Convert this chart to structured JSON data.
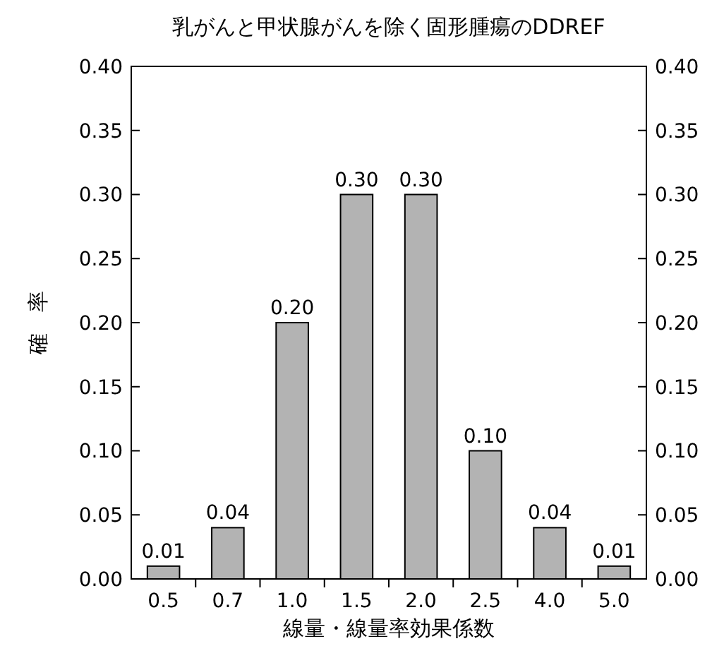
{
  "chart_data": {
    "type": "bar",
    "title": "乳がんと甲状腺がんを除く固形腫瘍のDDREF",
    "xlabel": "線量・線量率効果係数",
    "ylabel": "確　率",
    "categories": [
      "0.5",
      "0.7",
      "1.0",
      "1.5",
      "2.0",
      "2.5",
      "4.0",
      "5.0"
    ],
    "values": [
      0.01,
      0.04,
      0.2,
      0.3,
      0.3,
      0.1,
      0.04,
      0.01
    ],
    "value_labels": [
      "0.01",
      "0.04",
      "0.20",
      "0.30",
      "0.30",
      "0.10",
      "0.04",
      "0.01"
    ],
    "color": "#b3b3b3",
    "ylim": [
      0,
      0.4
    ],
    "yticks": [
      {
        "value": 0,
        "label": "0.00"
      },
      {
        "value": 0.05,
        "label": "0.05"
      },
      {
        "value": 0.1,
        "label": "0.10"
      },
      {
        "value": 0.15,
        "label": "0.15"
      },
      {
        "value": 0.2,
        "label": "0.20"
      },
      {
        "value": 0.25,
        "label": "0.25"
      },
      {
        "value": 0.3,
        "label": "0.30"
      },
      {
        "value": 0.35,
        "label": "0.35"
      },
      {
        "value": 0.4,
        "label": "0.40"
      }
    ],
    "y2lim": [
      0,
      0.4
    ],
    "y2ticks": [
      {
        "value": 0,
        "label": "0.00"
      },
      {
        "value": 0.05,
        "label": "0.05"
      },
      {
        "value": 0.1,
        "label": "0.10"
      },
      {
        "value": 0.15,
        "label": "0.15"
      },
      {
        "value": 0.2,
        "label": "0.20"
      },
      {
        "value": 0.25,
        "label": "0.25"
      },
      {
        "value": 0.3,
        "label": "0.30"
      },
      {
        "value": 0.35,
        "label": "0.35"
      },
      {
        "value": 0.4,
        "label": "0.40"
      }
    ],
    "data_labels": false
  }
}
